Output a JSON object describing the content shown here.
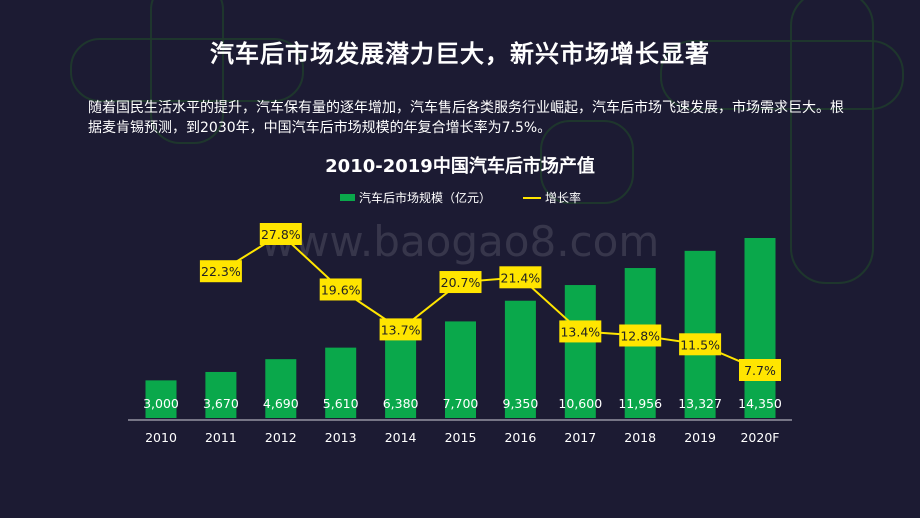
{
  "page": {
    "title": "汽车后市场发展潜力巨大，新兴市场增长显著",
    "description": "随着国民生活水平的提升，汽车保有量的逐年增加，汽车售后各类服务行业崛起，汽车后市场飞速发展，市场需求巨大。根据麦肯锡预测，到2030年，中国汽车后市场规模的年复合增长率为7.5%。",
    "watermark": "www.baogao8.com"
  },
  "colors": {
    "background": "#1c1b33",
    "bar": "#0aa84b",
    "line": "#ffe500",
    "label_bg": "#ffe500",
    "text": "#ffffff"
  },
  "chart_data": {
    "type": "bar",
    "title": "2010-2019中国汽车后市场产值",
    "categories": [
      "2010",
      "2011",
      "2012",
      "2013",
      "2014",
      "2015",
      "2016",
      "2017",
      "2018",
      "2019",
      "2020F"
    ],
    "series": [
      {
        "name": "汽车后市场规模（亿元）",
        "type": "bar",
        "values": [
          3000,
          3670,
          4690,
          5610,
          6380,
          7700,
          9350,
          10600,
          11956,
          13327,
          14350
        ],
        "labels": [
          "3,000",
          "3,670",
          "4,690",
          "5,610",
          "6,380",
          "7,700",
          "9,350",
          "10,600",
          "11,956",
          "13,327",
          "14,350"
        ]
      },
      {
        "name": "增长率",
        "type": "line",
        "values": [
          22.3,
          27.8,
          19.6,
          13.7,
          20.7,
          21.4,
          13.4,
          12.8,
          11.5,
          7.7
        ],
        "labels": [
          "22.3%",
          "27.8%",
          "19.6%",
          "13.7%",
          "20.7%",
          "21.4%",
          "13.4%",
          "12.8%",
          "11.5%",
          "7.7%"
        ],
        "x": [
          "2011",
          "2012",
          "2013",
          "2014",
          "2015",
          "2016",
          "2017",
          "2018",
          "2019",
          "2020F"
        ]
      }
    ],
    "legend_position": "top-center",
    "grid": false
  }
}
